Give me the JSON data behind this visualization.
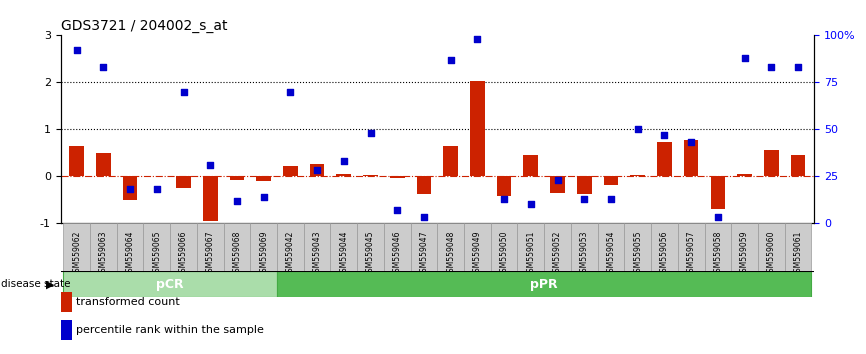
{
  "title": "GDS3721 / 204002_s_at",
  "samples": [
    "GSM559062",
    "GSM559063",
    "GSM559064",
    "GSM559065",
    "GSM559066",
    "GSM559067",
    "GSM559068",
    "GSM559069",
    "GSM559042",
    "GSM559043",
    "GSM559044",
    "GSM559045",
    "GSM559046",
    "GSM559047",
    "GSM559048",
    "GSM559049",
    "GSM559050",
    "GSM559051",
    "GSM559052",
    "GSM559053",
    "GSM559054",
    "GSM559055",
    "GSM559056",
    "GSM559057",
    "GSM559058",
    "GSM559059",
    "GSM559060",
    "GSM559061"
  ],
  "transformed_count": [
    0.65,
    0.5,
    -0.5,
    0.0,
    -0.25,
    -0.95,
    -0.08,
    -0.1,
    0.22,
    0.25,
    0.05,
    0.02,
    -0.04,
    -0.38,
    0.65,
    2.03,
    -0.42,
    0.45,
    -0.35,
    -0.38,
    -0.18,
    0.03,
    0.72,
    0.78,
    -0.7,
    0.05,
    0.55,
    0.45
  ],
  "percentile_rank": [
    92,
    83,
    18,
    18,
    70,
    31,
    12,
    14,
    70,
    28,
    33,
    48,
    7,
    3,
    87,
    98,
    13,
    10,
    23,
    13,
    13,
    50,
    47,
    43,
    3,
    88,
    83,
    83
  ],
  "pcr_count": 8,
  "ppr_count": 20,
  "bar_color": "#cc2200",
  "dot_color": "#0000cc",
  "pcr_color": "#aaddaa",
  "ppr_color": "#55bb55",
  "ylim_left": [
    -1,
    3
  ],
  "ylim_right": [
    0,
    100
  ],
  "hline_y": [
    1,
    2
  ],
  "hline_zero_color": "#cc2200",
  "hline_zero_style": "-.",
  "hline_dotted_color": "#000000",
  "hline_dotted_style": ":"
}
